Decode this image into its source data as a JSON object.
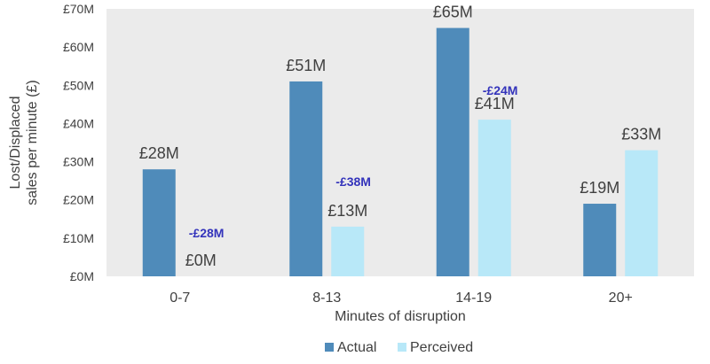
{
  "chart_data": {
    "type": "bar",
    "title": "",
    "xlabel": "Minutes of disruption",
    "ylabel_lines": [
      "Lost/Displaced",
      "sales per minute (£)"
    ],
    "categories": [
      "0-7",
      "8-13",
      "14-19",
      "20+"
    ],
    "ylim": [
      0,
      70
    ],
    "yticks": [
      0,
      10,
      20,
      30,
      40,
      50,
      60,
      70
    ],
    "ytick_labels": [
      "£0M",
      "£10M",
      "£20M",
      "£30M",
      "£40M",
      "£50M",
      "£60M",
      "£70M"
    ],
    "series": [
      {
        "name": "Actual",
        "color": "#4F8BBA",
        "values": [
          28,
          51,
          65,
          19
        ],
        "labels": [
          "£28M",
          "£51M",
          "£65M",
          "£19M"
        ]
      },
      {
        "name": "Perceived",
        "color": "#B8E8F8",
        "values": [
          0,
          13,
          41,
          33
        ],
        "labels": [
          "£0M",
          "£13M",
          "£41M",
          "£33M"
        ]
      }
    ],
    "difference_labels": [
      "-£28M",
      "-£38M",
      "-£24M",
      ""
    ],
    "difference_color": "#3333BB",
    "plot_background": "#EBEBEB",
    "legend_position": "bottom",
    "grid": false
  }
}
